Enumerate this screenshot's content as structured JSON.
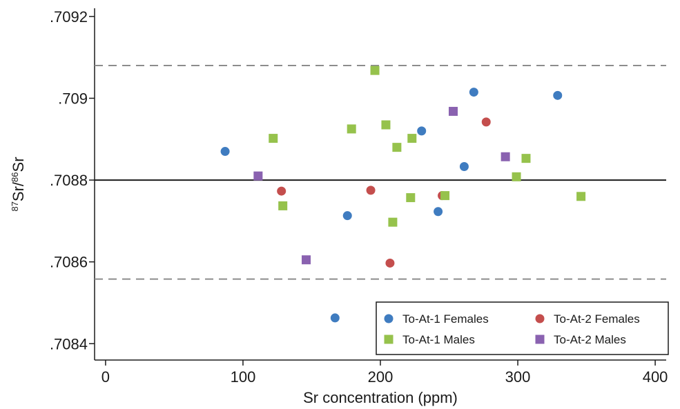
{
  "chart_data": {
    "type": "scatter",
    "xlabel": "Sr concentration (ppm)",
    "ylabel": {
      "pre1": "87",
      "mid": "Sr/",
      "pre2": "86",
      "post": "Sr"
    },
    "xlim": [
      -8,
      408
    ],
    "ylim": [
      0.70836,
      0.70922
    ],
    "x_ticks": [
      {
        "v": 0,
        "label": "0"
      },
      {
        "v": 100,
        "label": "100"
      },
      {
        "v": 200,
        "label": "200"
      },
      {
        "v": 300,
        "label": "300"
      },
      {
        "v": 400,
        "label": "400"
      }
    ],
    "y_ticks": [
      {
        "v": 0.7084,
        "label": ".7084"
      },
      {
        "v": 0.7086,
        "label": ".7086"
      },
      {
        "v": 0.7088,
        "label": ".7088"
      },
      {
        "v": 0.709,
        "label": ".709"
      },
      {
        "v": 0.7092,
        "label": ".7092"
      }
    ],
    "reference_lines": [
      {
        "y": 0.7088,
        "style": "solid",
        "color": "#1a1a1a"
      },
      {
        "y": 0.70908,
        "style": "dashed",
        "color": "#8c8c8c"
      },
      {
        "y": 0.708558,
        "style": "dashed",
        "color": "#8c8c8c"
      }
    ],
    "grid": false,
    "legend_position": "bottom-right",
    "series": [
      {
        "name": "To-At-1 Females",
        "marker": "circle",
        "color": "#3f7cc0",
        "points": [
          [
            87,
            0.70887
          ],
          [
            167,
            0.708463
          ],
          [
            176,
            0.708713
          ],
          [
            230,
            0.70892
          ],
          [
            242,
            0.708723
          ],
          [
            261,
            0.708833
          ],
          [
            268,
            0.709015
          ],
          [
            329,
            0.709007
          ]
        ]
      },
      {
        "name": "To-At-2 Females",
        "marker": "circle",
        "color": "#c44e4d",
        "points": [
          [
            128,
            0.708773
          ],
          [
            193,
            0.708775
          ],
          [
            207,
            0.708597
          ],
          [
            245,
            0.708762
          ],
          [
            277,
            0.708942
          ]
        ]
      },
      {
        "name": "To-At-1 Males",
        "marker": "square",
        "color": "#96c24c",
        "points": [
          [
            122,
            0.708902
          ],
          [
            129,
            0.708737
          ],
          [
            179,
            0.708925
          ],
          [
            196,
            0.709068
          ],
          [
            204,
            0.708935
          ],
          [
            209,
            0.708697
          ],
          [
            212,
            0.70888
          ],
          [
            222,
            0.708757
          ],
          [
            223,
            0.708902
          ],
          [
            247,
            0.708762
          ],
          [
            299,
            0.708808
          ],
          [
            306,
            0.708853
          ],
          [
            346,
            0.70876
          ]
        ]
      },
      {
        "name": "To-At-2 Males",
        "marker": "square",
        "color": "#8a62b0",
        "points": [
          [
            111,
            0.70881
          ],
          [
            146,
            0.708605
          ],
          [
            253,
            0.708968
          ],
          [
            291,
            0.708857
          ]
        ]
      }
    ]
  }
}
